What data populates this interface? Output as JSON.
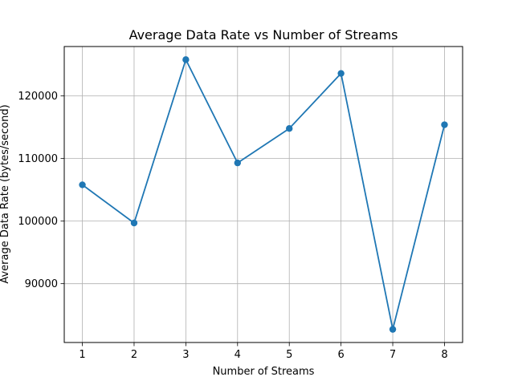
{
  "chart_data": {
    "type": "line",
    "title": "Average Data Rate vs Number of Streams",
    "xlabel": "Number of Streams",
    "ylabel": "Average Data Rate (bytes/second)",
    "x": [
      1,
      2,
      3,
      4,
      5,
      6,
      7,
      8
    ],
    "y": [
      105800,
      99700,
      125800,
      109300,
      114800,
      123600,
      82700,
      115400
    ],
    "xlim": [
      0.65,
      8.35
    ],
    "ylim": [
      80600,
      127900
    ],
    "xticks": [
      1,
      2,
      3,
      4,
      5,
      6,
      7,
      8
    ],
    "yticks": [
      90000,
      100000,
      110000,
      120000
    ],
    "grid": true,
    "line_color": "#1f77b4",
    "marker": "circle"
  }
}
